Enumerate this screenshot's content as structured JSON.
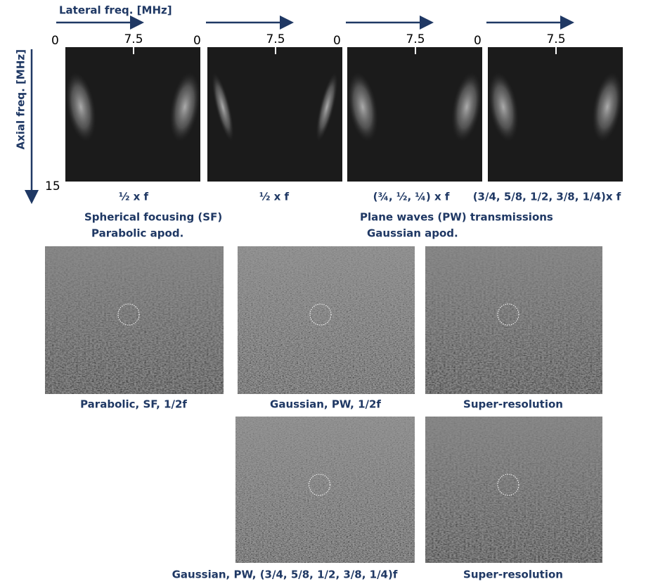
{
  "axes": {
    "lateral": "Lateral freq. [MHz]",
    "axial": "Axial freq. [MHz]",
    "axial_end": "15"
  },
  "spectra": [
    {
      "tick_start": "0",
      "tick_mid": "7.5",
      "caption": "½ x f"
    },
    {
      "tick_start": "0",
      "tick_mid": "7.5",
      "caption": "½ x f"
    },
    {
      "tick_start": "0",
      "tick_mid": "7.5",
      "caption": "(¾, ½, ¼) x f"
    },
    {
      "tick_start": "0",
      "tick_mid": "7.5",
      "caption": "(3/4, 5/8, 1/2, 3/8, 1/4)x f"
    }
  ],
  "groups": [
    {
      "line1": "Spherical focusing (SF)",
      "line2": "Parabolic apod."
    },
    {
      "line1": "Plane waves (PW) transmissions",
      "line2": "Gaussian apod."
    }
  ],
  "images": [
    {
      "caption": "Parabolic, SF, 1/2f"
    },
    {
      "caption": "Gaussian, PW, 1/2f"
    },
    {
      "caption": "Super-resolution"
    },
    {
      "caption": "Gaussian, PW, (3/4, 5/8, 1/2, 3/8, 1/4)f"
    },
    {
      "caption": "Super-resolution"
    }
  ]
}
